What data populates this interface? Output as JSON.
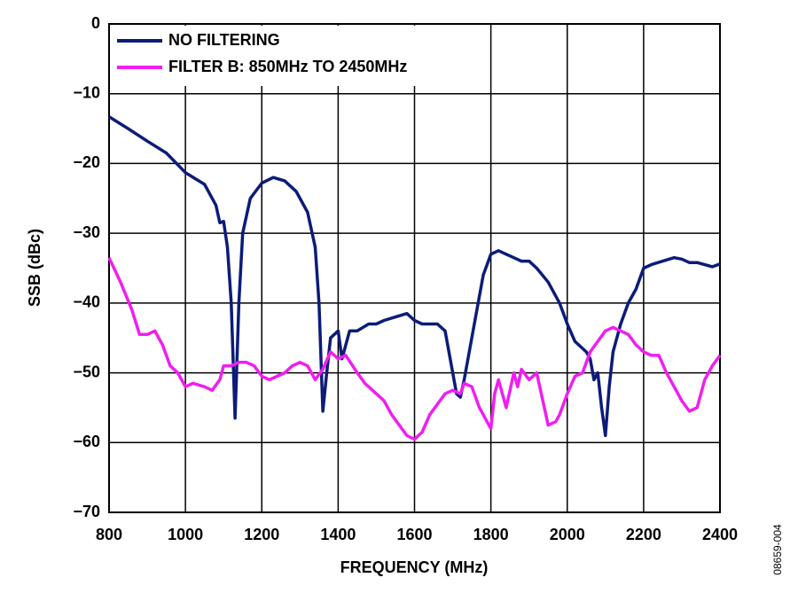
{
  "chart_data": {
    "type": "line",
    "x_label": "FREQUENCY (MHz)",
    "y_label": "SSB (dBc)",
    "annotation": "08659-004",
    "xlim": [
      800,
      2400
    ],
    "xticks": [
      800,
      1000,
      1200,
      1400,
      1600,
      1800,
      2000,
      2200,
      2400
    ],
    "ylim": [
      -70,
      0
    ],
    "yticks": [
      {
        "value": -70,
        "label": "−70"
      },
      {
        "value": -60,
        "label": "−60"
      },
      {
        "value": -50,
        "label": "−50"
      },
      {
        "value": -40,
        "label": "−40"
      },
      {
        "value": -30,
        "label": "−30"
      },
      {
        "value": -20,
        "label": "−20"
      },
      {
        "value": -10,
        "label": "−10"
      },
      0
    ],
    "grid": true,
    "legend": "upper left",
    "series": [
      {
        "name": "NO FILTERING",
        "color": "#0c1c78",
        "x": [
          800,
          850,
          900,
          950,
          1000,
          1050,
          1080,
          1090,
          1100,
          1110,
          1120,
          1130,
          1140,
          1150,
          1170,
          1200,
          1230,
          1260,
          1290,
          1320,
          1340,
          1350,
          1360,
          1370,
          1380,
          1400,
          1410,
          1430,
          1450,
          1480,
          1500,
          1520,
          1550,
          1580,
          1600,
          1620,
          1660,
          1680,
          1700,
          1710,
          1720,
          1730,
          1750,
          1760,
          1780,
          1800,
          1820,
          1840,
          1860,
          1880,
          1900,
          1920,
          1950,
          1980,
          2000,
          2020,
          2050,
          2060,
          2070,
          2080,
          2090,
          2100,
          2110,
          2120,
          2140,
          2160,
          2180,
          2200,
          2220,
          2250,
          2280,
          2300,
          2320,
          2340,
          2360,
          2380,
          2400
        ],
        "values": [
          -13.3,
          -15,
          -16.8,
          -18.5,
          -21.3,
          -23,
          -26,
          -28.5,
          -28.3,
          -32,
          -40,
          -56.5,
          -40,
          -30,
          -25,
          -22.8,
          -22,
          -22.5,
          -24,
          -27,
          -32,
          -40,
          -55.5,
          -50,
          -45,
          -44,
          -48,
          -44,
          -44,
          -43,
          -43,
          -42.5,
          -42,
          -41.5,
          -42.5,
          -43,
          -43,
          -44,
          -50,
          -53,
          -53.5,
          -51,
          -45,
          -42,
          -36,
          -33,
          -32.5,
          -33,
          -33.5,
          -34,
          -34,
          -35,
          -37,
          -40,
          -43,
          -45.5,
          -47,
          -48,
          -51,
          -50,
          -55,
          -59,
          -52,
          -47,
          -43,
          -40,
          -38,
          -35,
          -34.5,
          -34,
          -33.5,
          -33.7,
          -34.2,
          -34.2,
          -34.5,
          -34.8,
          -34.4
        ]
      },
      {
        "name": "FILTER B: 850MHz TO 2450MHz",
        "color": "#f01ef0",
        "x": [
          800,
          830,
          860,
          880,
          900,
          920,
          940,
          960,
          980,
          1000,
          1020,
          1050,
          1070,
          1090,
          1100,
          1120,
          1140,
          1160,
          1180,
          1200,
          1220,
          1240,
          1260,
          1280,
          1300,
          1320,
          1340,
          1360,
          1380,
          1400,
          1420,
          1450,
          1470,
          1500,
          1520,
          1540,
          1560,
          1580,
          1600,
          1620,
          1640,
          1660,
          1680,
          1700,
          1720,
          1730,
          1750,
          1770,
          1790,
          1800,
          1810,
          1820,
          1840,
          1860,
          1870,
          1880,
          1900,
          1920,
          1940,
          1950,
          1970,
          1980,
          2000,
          2020,
          2040,
          2060,
          2080,
          2100,
          2120,
          2140,
          2160,
          2180,
          2200,
          2220,
          2240,
          2260,
          2280,
          2300,
          2320,
          2340,
          2360,
          2380,
          2400
        ],
        "values": [
          -33.5,
          -37,
          -41,
          -44.5,
          -44.5,
          -44,
          -46,
          -49,
          -50,
          -52,
          -51.5,
          -52,
          -52.5,
          -51,
          -49,
          -49,
          -48.5,
          -48.5,
          -49,
          -50.5,
          -51,
          -50.5,
          -50,
          -49,
          -48.5,
          -49,
          -51,
          -49.5,
          -47,
          -48,
          -47.5,
          -50,
          -51.5,
          -53,
          -54,
          -56,
          -57.5,
          -59,
          -59.5,
          -58.5,
          -56,
          -54.5,
          -53,
          -52.5,
          -53,
          -51.5,
          -52,
          -55,
          -57,
          -58,
          -53,
          -51,
          -55,
          -50,
          -52,
          -49.5,
          -51,
          -50,
          -55,
          -57.5,
          -57,
          -56,
          -53,
          -50.5,
          -50,
          -47,
          -45.5,
          -44,
          -43.5,
          -44,
          -44.5,
          -46,
          -47,
          -47.5,
          -47.5,
          -50,
          -52,
          -54,
          -55.5,
          -55,
          -51,
          -49,
          -47.5
        ]
      }
    ]
  }
}
